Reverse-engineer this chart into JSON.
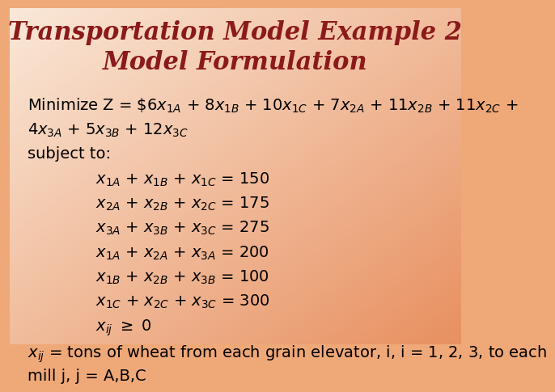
{
  "title_line1": "Transportation Model Example 2",
  "title_line2": "Model Formulation",
  "title_color": "#8B1A1A",
  "title_fontsize": 22,
  "body_fontsize": 14,
  "bg_color_top_left": "#F0B080",
  "bg_color_bottom_right": "#FAE0C8",
  "text_color": "#000000",
  "minimize_line1": "Minimize Z = $6x$_{1A} + 8x$_{1B} + 10x$_{1C} + 7x$_{2A} + 11x$_{2B} + 11x$_{2C} +",
  "minimize_line2": "4x$_{3A} + 5x$_{3B} + 12x$_{3C}",
  "subject_to": "subject to:",
  "constraints": [
    "x$_{1A} + x$_{1B} + x$_{1C} = 150",
    "x$_{2A} + x$_{2B} + x$_{2C} = 175",
    "x$_{3A} + x$_{3B} + x$_{3C} = 275",
    "x$_{1A} + x$_{2A} + x$_{3A} = 200",
    "x$_{1B} + x$_{2B} + x$_{3B} = 100",
    "x$_{1C} + x$_{2C} + x$_{3C} = 300",
    "x$_{ij} >= 0"
  ],
  "footer_line1": "x$_{ij} = tons of wheat from each grain elevator, i, i = 1, 2, 3, to each",
  "footer_line2": "mill j, j = A,B,C"
}
